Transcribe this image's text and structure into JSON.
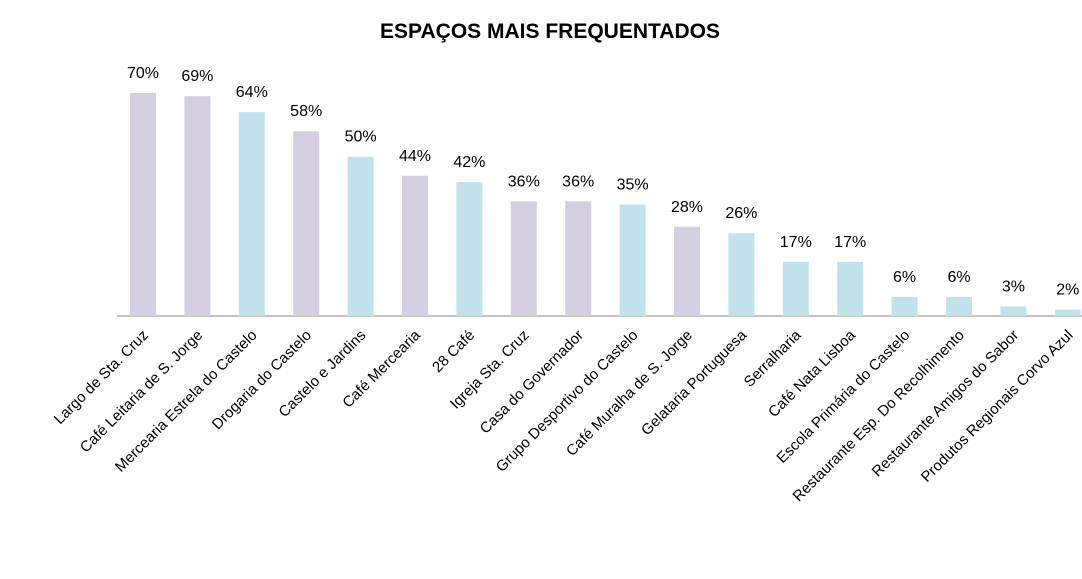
{
  "chart_data": {
    "type": "bar",
    "title": "ESPAÇOS MAIS FREQUENTADOS",
    "categories": [
      "Largo de Sta. Cruz",
      "Café Leitaria de S. Jorge",
      "Mercearia Estrela do Castelo",
      "Drogaria do Castelo",
      "Castelo e Jardins",
      "Café Mercearia",
      "28 Café",
      "Igreja Sta. Cruz",
      "Casa do Governador",
      "Grupo Desportivo do Castelo",
      "Café Muralha de S. Jorge",
      "Gelataria Portuguesa",
      "Serralharia",
      "Café Nata Lisboa",
      "Escola Primária do Castelo",
      "Restaurante Esp. Do Recolhimento",
      "Restaurante Amigos do Sabor",
      "Produtos Regionais Corvo Azul"
    ],
    "values": [
      70,
      69,
      64,
      58,
      50,
      44,
      42,
      36,
      36,
      35,
      28,
      26,
      17,
      17,
      6,
      6,
      3,
      2
    ],
    "value_labels": [
      "70%",
      "69%",
      "64%",
      "58%",
      "50%",
      "44%",
      "42%",
      "36%",
      "36%",
      "35%",
      "28%",
      "26%",
      "17%",
      "17%",
      "6%",
      "6%",
      "3%",
      "2%"
    ],
    "colors": [
      "#d5cfe2",
      "#d5cfe2",
      "#c2e3ec",
      "#d5cfe2",
      "#c2e3ec",
      "#d5cfe2",
      "#c2e3ec",
      "#d5cfe2",
      "#d5cfe2",
      "#c2e3ec",
      "#d5cfe2",
      "#c2e3ec",
      "#c2e3ec",
      "#c2e3ec",
      "#c2e3ec",
      "#c2e3ec",
      "#c2e3ec",
      "#c2e3ec"
    ]
  }
}
